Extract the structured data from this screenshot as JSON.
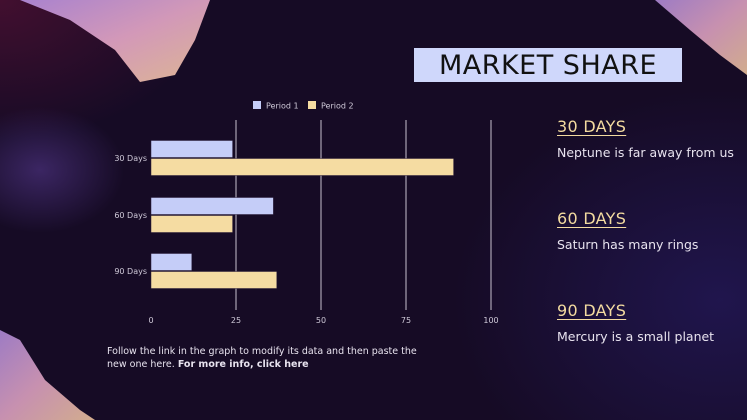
{
  "title": "MARKET SHARE",
  "sections": [
    {
      "heading": "30 DAYS",
      "text": "Neptune is far away from us"
    },
    {
      "heading": "60 DAYS",
      "text": "Saturn has many rings"
    },
    {
      "heading": "90 DAYS",
      "text": "Mercury is a small planet"
    }
  ],
  "note": {
    "text": "Follow the link in the graph to modify its data and then paste the new one here. ",
    "link": "For more info, click here"
  },
  "colors": {
    "period1": "#c5cdf8",
    "period2": "#f5dca2",
    "title_bg": "#cfd7fb",
    "heading": "#f3dba0"
  },
  "chart_data": {
    "type": "bar",
    "orientation": "horizontal",
    "categories": [
      "30 Days",
      "60 Days",
      "90 Days"
    ],
    "series": [
      {
        "name": "Period 1",
        "values": [
          24,
          36,
          12
        ],
        "color": "#c5cdf8"
      },
      {
        "name": "Period 2",
        "values": [
          89,
          24,
          37
        ],
        "color": "#f5dca2"
      }
    ],
    "xlim": [
      0,
      100
    ],
    "xticks": [
      "0",
      "25",
      "50",
      "75",
      "100"
    ],
    "grid": true,
    "legend": "top"
  }
}
